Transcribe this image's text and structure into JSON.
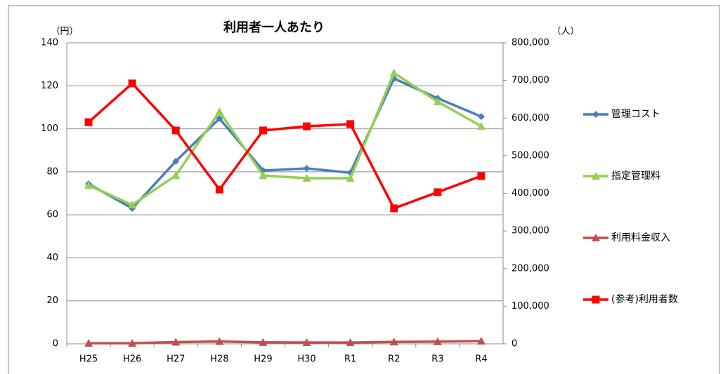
{
  "chart_data": {
    "type": "line",
    "title": "利用者一人あたり",
    "ylabel": "（円）",
    "y2label": "（人）",
    "categories": [
      "H25",
      "H26",
      "H27",
      "H28",
      "H29",
      "H30",
      "R1",
      "R2",
      "R3",
      "R4"
    ],
    "ylim": [
      0,
      140
    ],
    "yticks": [
      0,
      20,
      40,
      60,
      80,
      100,
      120,
      140
    ],
    "y2lim": [
      0,
      800000
    ],
    "y2ticks": [
      0,
      {
        "value": 100000,
        "label": "100,000"
      },
      {
        "value": 200000,
        "label": "200,000"
      },
      {
        "value": 300000,
        "label": "300,000"
      },
      {
        "value": 400000,
        "label": "400,000"
      },
      {
        "value": 500000,
        "label": "500,000"
      },
      {
        "value": 600000,
        "label": "600,000"
      },
      {
        "value": 700000,
        "label": "700,000"
      },
      {
        "value": 800000,
        "label": "800,000"
      }
    ],
    "grid": true,
    "legend": "right",
    "series": [
      {
        "name": "管理コスト",
        "color": "#4a7ebb",
        "marker": "diamond",
        "values": [
          74.4,
          63,
          84.9,
          104.8,
          80.6,
          81.6,
          79.6,
          123.4,
          114.2,
          105.7
        ]
      },
      {
        "name": "指定管理料",
        "color": "#92d050",
        "marker": "triangle",
        "values": [
          73.8,
          64.6,
          78.3,
          108,
          78.3,
          77,
          77,
          126,
          112.6,
          101.2
        ]
      },
      {
        "name": "利用料金収入",
        "color": "#c0504d",
        "marker": "triangle",
        "values": [
          0.3,
          0.3,
          0.8,
          1.1,
          0.7,
          0.6,
          0.6,
          0.9,
          1,
          1.3
        ]
      },
      {
        "name": "(参考)利用者数",
        "color": "#ff0000",
        "marker": "square",
        "axis": "y2",
        "values": [
          589000,
          692000,
          567000,
          410000,
          567000,
          578000,
          584000,
          360000,
          403000,
          446000
        ]
      }
    ]
  }
}
